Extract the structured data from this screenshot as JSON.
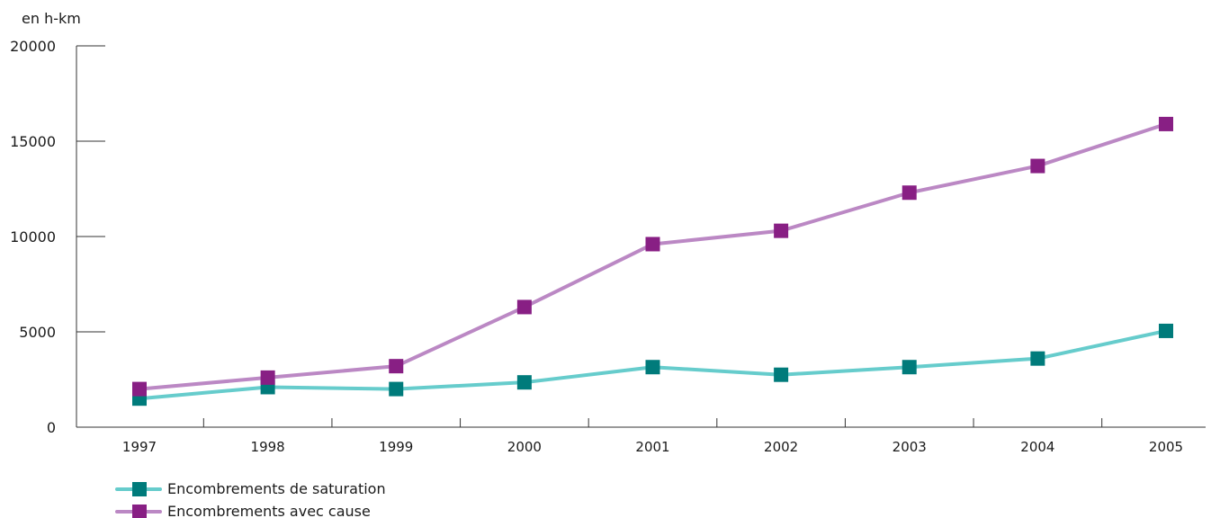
{
  "chart_data": {
    "type": "line",
    "unit_label": "en h-km",
    "categories": [
      "1997",
      "1998",
      "1999",
      "2000",
      "2001",
      "2002",
      "2003",
      "2004",
      "2005"
    ],
    "ylim": [
      0,
      20000
    ],
    "yticks": [
      "0",
      "5000",
      "10000",
      "15000",
      "20000"
    ],
    "grid": false,
    "legend_position": "bottom-left",
    "series": [
      {
        "name": "Encombrements de saturation",
        "values": [
          1500,
          2100,
          2000,
          2350,
          3150,
          2750,
          3150,
          3600,
          5050
        ],
        "line_color": "#66cccc",
        "marker_color": "#007b7b"
      },
      {
        "name": "Encombrements avec cause",
        "values": [
          2000,
          2600,
          3200,
          6300,
          9600,
          10300,
          12300,
          13700,
          15900
        ],
        "line_color": "#bb88c4",
        "marker_color": "#881f84"
      }
    ]
  }
}
